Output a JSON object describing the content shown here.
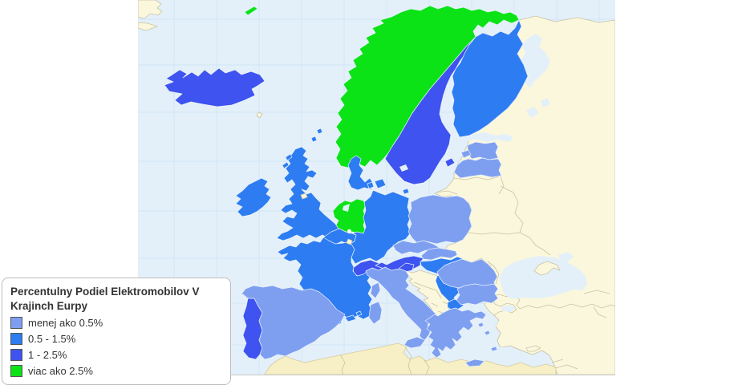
{
  "legend": {
    "title": "Percentulny Podiel Elektromobilov V Krajinch Eurpy",
    "items": [
      {
        "label": "menej ako 0.5%",
        "color": "#7E9EF0"
      },
      {
        "label": "0.5 - 1.5%",
        "color": "#2D7CF2"
      },
      {
        "label": "1 - 2.5%",
        "color": "#3E53EF"
      },
      {
        "label": "viac ako 2.5%",
        "color": "#0BE316"
      }
    ]
  },
  "palette": {
    "cat1": "#7E9EF0",
    "cat2": "#2D7CF2",
    "cat3": "#3E53EF",
    "cat4": "#0BE316",
    "no_data": "#FBF7DC",
    "africa_land": "#F7EFC5",
    "ocean": "#E3F0FA",
    "graticule": "#D2E6F5"
  },
  "chart_data": {
    "type": "heatmap",
    "subtype": "choropleth-map",
    "title": "Percentulny Podiel Elektromobilov V Krajinch Eurpy",
    "region": "Europe",
    "legend_position": "bottom-left",
    "categories": [
      "menej ako 0.5%",
      "0.5 - 1.5%",
      "1 - 2.5%",
      "viac ako 2.5%",
      "no data"
    ],
    "category_colors": [
      "#7E9EF0",
      "#2D7CF2",
      "#3E53EF",
      "#0BE316",
      "#FBF7DC"
    ],
    "series": [
      {
        "country": "Norway",
        "category": "viac ako 2.5%"
      },
      {
        "country": "Netherlands",
        "category": "viac ako 2.5%"
      },
      {
        "country": "Iceland",
        "category": "1 - 2.5%"
      },
      {
        "country": "Sweden",
        "category": "1 - 2.5%"
      },
      {
        "country": "Switzerland",
        "category": "1 - 2.5%"
      },
      {
        "country": "Austria",
        "category": "1 - 2.5%"
      },
      {
        "country": "Portugal",
        "category": "1 - 2.5%"
      },
      {
        "country": "Slovenia",
        "category": "1 - 2.5%"
      },
      {
        "country": "United Kingdom",
        "category": "0.5 - 1.5%"
      },
      {
        "country": "Ireland",
        "category": "0.5 - 1.5%"
      },
      {
        "country": "France",
        "category": "0.5 - 1.5%"
      },
      {
        "country": "Germany",
        "category": "0.5 - 1.5%"
      },
      {
        "country": "Belgium",
        "category": "0.5 - 1.5%"
      },
      {
        "country": "Denmark",
        "category": "0.5 - 1.5%"
      },
      {
        "country": "Finland",
        "category": "0.5 - 1.5%"
      },
      {
        "country": "Hungary",
        "category": "0.5 - 1.5%"
      },
      {
        "country": "Serbia",
        "category": "0.5 - 1.5%"
      },
      {
        "country": "North Macedonia",
        "category": "0.5 - 1.5%"
      },
      {
        "country": "Spain",
        "category": "menej ako 0.5%"
      },
      {
        "country": "Italy",
        "category": "menej ako 0.5%"
      },
      {
        "country": "Poland",
        "category": "menej ako 0.5%"
      },
      {
        "country": "Czech Republic",
        "category": "menej ako 0.5%"
      },
      {
        "country": "Slovakia",
        "category": "menej ako 0.5%"
      },
      {
        "country": "Estonia",
        "category": "menej ako 0.5%"
      },
      {
        "country": "Latvia",
        "category": "menej ako 0.5%"
      },
      {
        "country": "Romania",
        "category": "menej ako 0.5%"
      },
      {
        "country": "Bulgaria",
        "category": "menej ako 0.5%"
      },
      {
        "country": "Greece",
        "category": "menej ako 0.5%"
      },
      {
        "country": "Lithuania",
        "category": "no data"
      },
      {
        "country": "Croatia",
        "category": "no data"
      },
      {
        "country": "Bosnia and Herzegovina",
        "category": "no data"
      },
      {
        "country": "Albania",
        "category": "no data"
      },
      {
        "country": "Montenegro",
        "category": "no data"
      },
      {
        "country": "Kosovo",
        "category": "no data"
      },
      {
        "country": "Ukraine",
        "category": "no data"
      },
      {
        "country": "Belarus",
        "category": "no data"
      },
      {
        "country": "Moldova",
        "category": "no data"
      },
      {
        "country": "Russia",
        "category": "no data"
      },
      {
        "country": "Turkey",
        "category": "no data"
      },
      {
        "country": "Luxembourg",
        "category": "no data"
      },
      {
        "country": "Cyprus",
        "category": "no data"
      }
    ]
  }
}
